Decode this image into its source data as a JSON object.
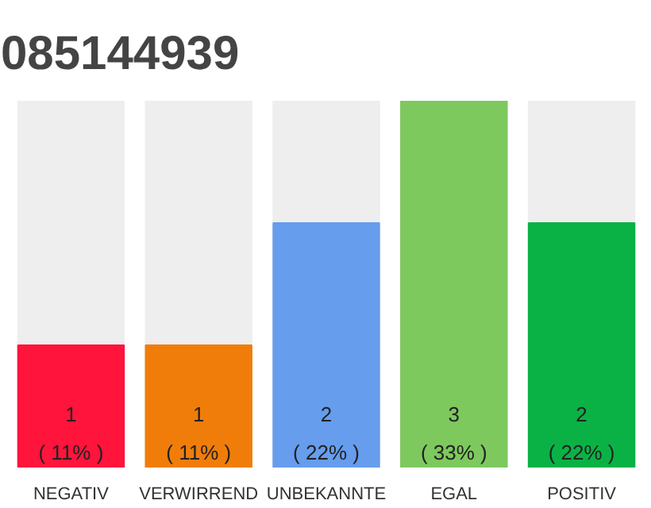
{
  "chart_data": {
    "type": "bar",
    "title": "085144939",
    "categories": [
      "NEGATIV",
      "VERWIRREND",
      "UNBEKANNTE",
      "EGAL",
      "POSITIV"
    ],
    "values": [
      1,
      1,
      2,
      3,
      2
    ],
    "colors": [
      "#ff143c",
      "#f07d0a",
      "#669ded",
      "#7dc95e",
      "#0ab246"
    ],
    "value_labels": [
      "1\n( 11% )",
      "1\n( 11% )",
      "2\n( 22% )",
      "3\n( 33% )",
      "2\n( 22% )"
    ],
    "ylim": [
      0,
      3
    ],
    "tick_labels": "x"
  }
}
